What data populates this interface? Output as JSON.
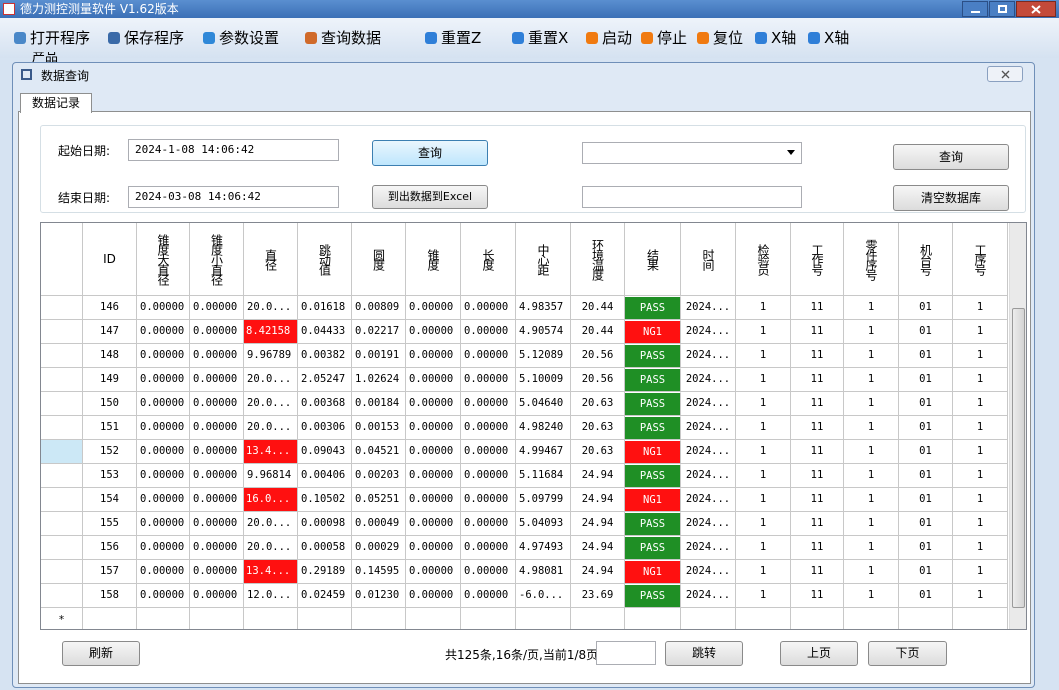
{
  "window": {
    "title": "德力测控测量软件 V1.62版本"
  },
  "toolbar": {
    "items": [
      "打开程序",
      "保存程序",
      "参数设置",
      "查询数据",
      "重置Z",
      "重置X",
      "启动",
      "停止",
      "复位",
      "X轴",
      "X轴"
    ]
  },
  "background_label": "产品",
  "dialog": {
    "title": "数据查询",
    "tab": "数据记录",
    "form": {
      "start_label": "起始日期:",
      "start_value": "2024-1-08 14:06:42",
      "end_label": "结束日期:",
      "end_value": "2024-03-08 14:06:42",
      "query_button": "查询",
      "export_button": "到出数据到Excel",
      "query_button_2": "查询",
      "clear_button": "清空数据库"
    }
  },
  "table": {
    "columns": [
      "ID",
      "锥度大直径",
      "锥度小直径",
      "直径",
      "跳动值",
      "圆度",
      "锥度",
      "长度",
      "中心距",
      "环境温度",
      "结果",
      "时间",
      "检验员",
      "工作号",
      "零件序号",
      "机台号",
      "工序号"
    ],
    "new_row_marker": "*",
    "rows": [
      {
        "cells": [
          "146",
          "0.00000",
          "0.00000",
          "20.0...",
          "0.01618",
          "0.00809",
          "0.00000",
          "0.00000",
          "4.98357",
          "20.44",
          "PASS",
          "2024...",
          "1",
          "11",
          "1",
          "01",
          "1"
        ],
        "colors": {
          "10": "#1f8f25"
        }
      },
      {
        "cells": [
          "147",
          "0.00000",
          "0.00000",
          "8.42158",
          "0.04433",
          "0.02217",
          "0.00000",
          "0.00000",
          "4.90574",
          "20.44",
          "NG1",
          "2024...",
          "1",
          "11",
          "1",
          "01",
          "1"
        ],
        "colors": {
          "3": "#ff1010",
          "10": "#ff1010"
        }
      },
      {
        "cells": [
          "148",
          "0.00000",
          "0.00000",
          "9.96789",
          "0.00382",
          "0.00191",
          "0.00000",
          "0.00000",
          "5.12089",
          "20.56",
          "PASS",
          "2024...",
          "1",
          "11",
          "1",
          "01",
          "1"
        ],
        "colors": {
          "10": "#1f8f25"
        }
      },
      {
        "cells": [
          "149",
          "0.00000",
          "0.00000",
          "20.0...",
          "2.05247",
          "1.02624",
          "0.00000",
          "0.00000",
          "5.10009",
          "20.56",
          "PASS",
          "2024...",
          "1",
          "11",
          "1",
          "01",
          "1"
        ],
        "colors": {
          "10": "#1f8f25"
        }
      },
      {
        "cells": [
          "150",
          "0.00000",
          "0.00000",
          "20.0...",
          "0.00368",
          "0.00184",
          "0.00000",
          "0.00000",
          "5.04640",
          "20.63",
          "PASS",
          "2024...",
          "1",
          "11",
          "1",
          "01",
          "1"
        ],
        "colors": {
          "10": "#1f8f25"
        }
      },
      {
        "cells": [
          "151",
          "0.00000",
          "0.00000",
          "20.0...",
          "0.00306",
          "0.00153",
          "0.00000",
          "0.00000",
          "4.98240",
          "20.63",
          "PASS",
          "2024...",
          "1",
          "11",
          "1",
          "01",
          "1"
        ],
        "colors": {
          "10": "#1f8f25"
        }
      },
      {
        "cells": [
          "152",
          "0.00000",
          "0.00000",
          "13.4...",
          "0.09043",
          "0.04521",
          "0.00000",
          "0.00000",
          "4.99467",
          "20.63",
          "NG1",
          "2024...",
          "1",
          "11",
          "1",
          "01",
          "1"
        ],
        "colors": {
          "3": "#ff1010",
          "10": "#ff1010"
        },
        "selected": true
      },
      {
        "cells": [
          "153",
          "0.00000",
          "0.00000",
          "9.96814",
          "0.00406",
          "0.00203",
          "0.00000",
          "0.00000",
          "5.11684",
          "24.94",
          "PASS",
          "2024...",
          "1",
          "11",
          "1",
          "01",
          "1"
        ],
        "colors": {
          "10": "#1f8f25"
        }
      },
      {
        "cells": [
          "154",
          "0.00000",
          "0.00000",
          "16.0...",
          "0.10502",
          "0.05251",
          "0.00000",
          "0.00000",
          "5.09799",
          "24.94",
          "NG1",
          "2024...",
          "1",
          "11",
          "1",
          "01",
          "1"
        ],
        "colors": {
          "3": "#ff1010",
          "10": "#ff1010"
        }
      },
      {
        "cells": [
          "155",
          "0.00000",
          "0.00000",
          "20.0...",
          "0.00098",
          "0.00049",
          "0.00000",
          "0.00000",
          "5.04093",
          "24.94",
          "PASS",
          "2024...",
          "1",
          "11",
          "1",
          "01",
          "1"
        ],
        "colors": {
          "10": "#1f8f25"
        }
      },
      {
        "cells": [
          "156",
          "0.00000",
          "0.00000",
          "20.0...",
          "0.00058",
          "0.00029",
          "0.00000",
          "0.00000",
          "4.97493",
          "24.94",
          "PASS",
          "2024...",
          "1",
          "11",
          "1",
          "01",
          "1"
        ],
        "colors": {
          "10": "#1f8f25"
        }
      },
      {
        "cells": [
          "157",
          "0.00000",
          "0.00000",
          "13.4...",
          "0.29189",
          "0.14595",
          "0.00000",
          "0.00000",
          "4.98081",
          "24.94",
          "NG1",
          "2024...",
          "1",
          "11",
          "1",
          "01",
          "1"
        ],
        "colors": {
          "3": "#ff1010",
          "10": "#ff1010"
        }
      },
      {
        "cells": [
          "158",
          "0.00000",
          "0.00000",
          "12.0...",
          "0.02459",
          "0.01230",
          "0.00000",
          "0.00000",
          "-6.0...",
          "23.69",
          "PASS",
          "2024...",
          "1",
          "11",
          "1",
          "01",
          "1"
        ],
        "colors": {
          "10": "#1f8f25"
        }
      }
    ]
  },
  "pager": {
    "refresh_button": "刷新",
    "info": "共125条,16条/页,当前1/8页",
    "jump_button": "跳转",
    "prev_button": "上页",
    "next_button": "下页"
  }
}
